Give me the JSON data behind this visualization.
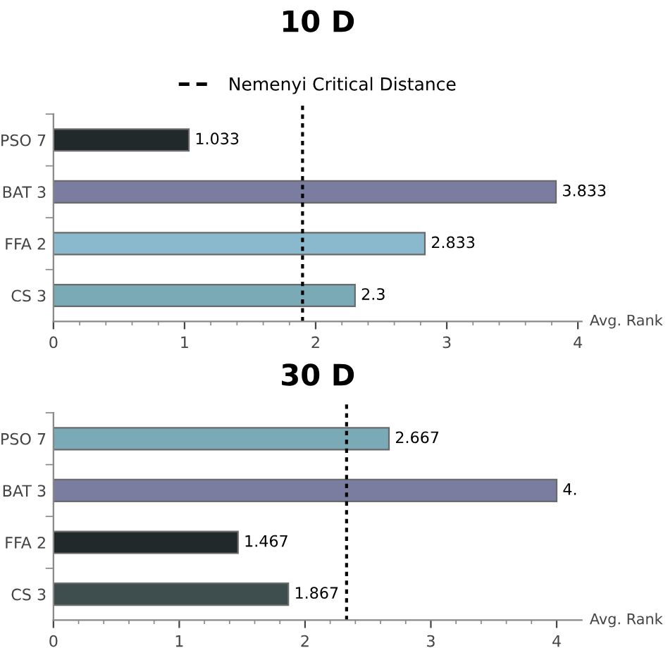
{
  "chart_data": [
    {
      "type": "bar",
      "orientation": "horizontal",
      "title": "10 D",
      "xlabel": "Avg. Rank",
      "categories": [
        "PSO 7",
        "BAT 3",
        "FFA 2",
        "CS 3"
      ],
      "values": [
        1.033,
        3.833,
        2.833,
        2.3
      ],
      "colors": [
        "#22292b",
        "#7a7ca0",
        "#8ab8cc",
        "#7aaab5"
      ],
      "data_labels": true,
      "xlim": [
        0,
        4.03
      ],
      "xticks": [
        0,
        {
          "value": 0.2,
          "label": null
        },
        {
          "value": 0.4,
          "label": null
        },
        {
          "value": 0.6,
          "label": null
        },
        {
          "value": 0.8,
          "label": null
        },
        1,
        {
          "value": 1.2,
          "label": null
        },
        {
          "value": 1.4,
          "label": null
        },
        {
          "value": 1.6,
          "label": null
        },
        {
          "value": 1.8,
          "label": null
        },
        2,
        {
          "value": 2.2,
          "label": null
        },
        {
          "value": 2.4,
          "label": null
        },
        {
          "value": 2.6,
          "label": null
        },
        {
          "value": 2.8,
          "label": null
        },
        3,
        {
          "value": 3.2,
          "label": null
        },
        {
          "value": 3.4,
          "label": null
        },
        {
          "value": 3.6,
          "label": null
        },
        {
          "value": 3.8,
          "label": null
        },
        4
      ],
      "ref_lines": [
        {
          "axis": "x",
          "value": 1.9,
          "label": "Nemenyi Critical Distance",
          "color": "#000000",
          "line_style": "dotted"
        }
      ],
      "legend": "top",
      "grid": false
    },
    {
      "type": "bar",
      "orientation": "horizontal",
      "title": "30 D",
      "xlabel": "Avg. Rank",
      "categories": [
        "PSO 7",
        "BAT 3",
        "FFA 2",
        "CS 3"
      ],
      "values": [
        2.667,
        4,
        1.467,
        1.867
      ],
      "value_labels": [
        "2.667",
        "4.",
        "1.467",
        "1.867"
      ],
      "colors": [
        "#7aaab5",
        "#7a7ca0",
        "#22292b",
        "#3e4d4d"
      ],
      "xlim": [
        0,
        4.2
      ],
      "xticks": [
        0,
        {
          "value": 0.2,
          "label": null
        },
        {
          "value": 0.4,
          "label": null
        },
        {
          "value": 0.6,
          "label": null
        },
        {
          "value": 0.8,
          "label": null
        },
        1,
        {
          "value": 1.2,
          "label": null
        },
        {
          "value": 1.4,
          "label": null
        },
        {
          "value": 1.6,
          "label": null
        },
        {
          "value": 1.8,
          "label": null
        },
        2,
        {
          "value": 2.2,
          "label": null
        },
        {
          "value": 2.4,
          "label": null
        },
        {
          "value": 2.6,
          "label": null
        },
        {
          "value": 2.8,
          "label": null
        },
        3,
        {
          "value": 3.2,
          "label": null
        },
        {
          "value": 3.4,
          "label": null
        },
        {
          "value": 3.6,
          "label": null
        },
        {
          "value": 3.8,
          "label": null
        },
        4
      ],
      "ref_lines": [
        {
          "axis": "x",
          "value": 2.33,
          "color": "#000000",
          "line_style": "dotted"
        }
      ],
      "grid": false
    }
  ]
}
